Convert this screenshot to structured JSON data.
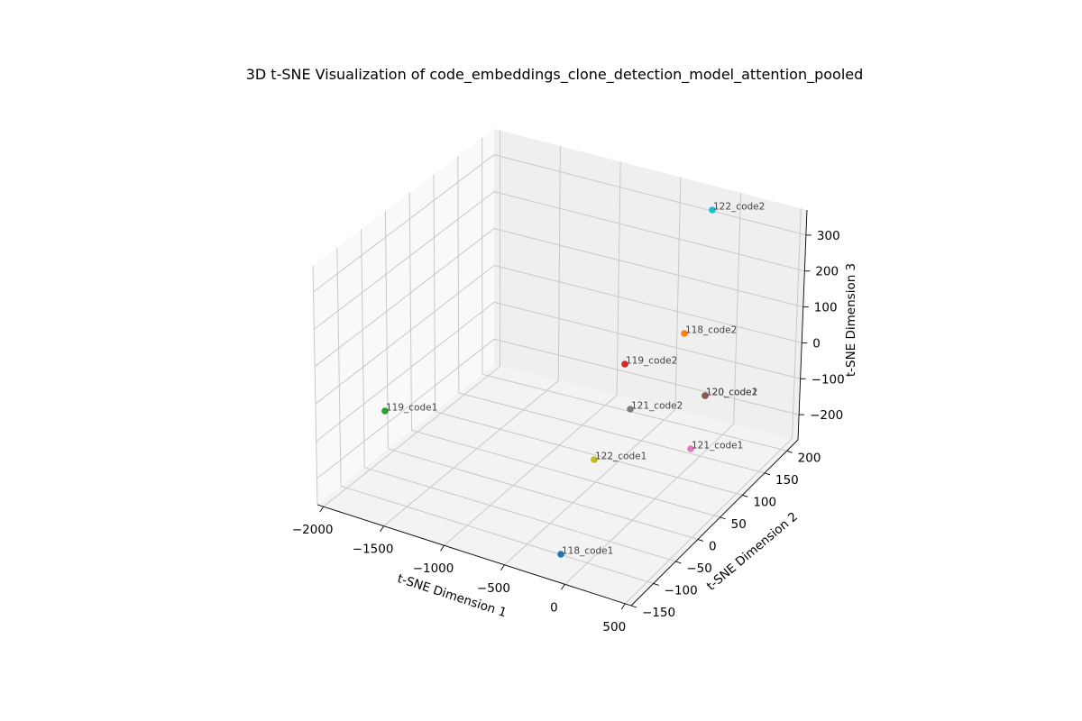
{
  "chart_data": {
    "type": "scatter",
    "title": "3D t-SNE Visualization of code_embeddings_clone_detection_model_attention_pooled",
    "xlabel": "t-SNE Dimension 1",
    "ylabel": "t-SNE Dimension 2",
    "zlabel": "t-SNE Dimension 3",
    "x_ticks": [
      -2000,
      -1500,
      -1000,
      -500,
      0,
      500
    ],
    "y_ticks": [
      -150,
      -100,
      -50,
      0,
      50,
      100,
      150,
      200
    ],
    "z_ticks": [
      -200,
      -100,
      0,
      100,
      200,
      300
    ],
    "grid": true,
    "points": [
      {
        "label": "118_code1",
        "x": 250,
        "y": -120,
        "z": -190,
        "color": "#1f77b4"
      },
      {
        "label": "118_code2",
        "x": 300,
        "y": 180,
        "z": 120,
        "color": "#ff7f0e"
      },
      {
        "label": "119_code1",
        "x": -2000,
        "y": 50,
        "z": -50,
        "color": "#2ca02c"
      },
      {
        "label": "119_code2",
        "x": -450,
        "y": 100,
        "z": 0,
        "color": "#d62728"
      },
      {
        "label": "120_code1",
        "x": 500,
        "y": 100,
        "z": -120,
        "color": "#9467bd"
      },
      {
        "label": "120_code2",
        "x": 500,
        "y": 100,
        "z": -120,
        "color": "#8c564b"
      },
      {
        "label": "121_code1",
        "x": 600,
        "y": -30,
        "z": -200,
        "color": "#e377c2"
      },
      {
        "label": "121_code2",
        "x": -100,
        "y": 150,
        "z": -200,
        "color": "#7f7f7f"
      },
      {
        "label": "122_code1",
        "x": -500,
        "y": -50,
        "z": -200,
        "color": "#bcbd22"
      },
      {
        "label": "122_code2",
        "x": 400,
        "y": 150,
        "z": 320,
        "color": "#17becf"
      }
    ]
  }
}
